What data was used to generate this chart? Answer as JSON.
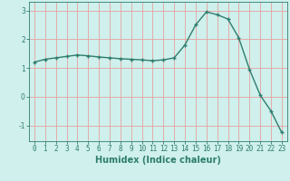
{
  "x": [
    0,
    1,
    2,
    3,
    4,
    5,
    6,
    7,
    8,
    9,
    10,
    11,
    12,
    13,
    14,
    15,
    16,
    17,
    18,
    19,
    20,
    21,
    22,
    23
  ],
  "y": [
    1.2,
    1.3,
    1.35,
    1.4,
    1.45,
    1.42,
    1.38,
    1.35,
    1.32,
    1.3,
    1.28,
    1.25,
    1.28,
    1.35,
    1.8,
    2.5,
    2.95,
    2.85,
    2.7,
    2.05,
    0.95,
    0.05,
    -0.5,
    -1.25
  ],
  "line_color": "#2e7d6e",
  "marker": "+",
  "markersize": 3,
  "linewidth": 1.0,
  "markeredgewidth": 1.0,
  "background_color": "#cff0ec",
  "grid_color": "#e8a0a0",
  "xlabel": "Humidex (Indice chaleur)",
  "xlim": [
    -0.5,
    23.5
  ],
  "ylim": [
    -1.55,
    3.3
  ],
  "yticks": [
    -1,
    0,
    1,
    2,
    3
  ],
  "xtick_labels": [
    "0",
    "1",
    "2",
    "3",
    "4",
    "5",
    "6",
    "7",
    "8",
    "9",
    "10",
    "11",
    "12",
    "13",
    "14",
    "15",
    "16",
    "17",
    "18",
    "19",
    "20",
    "21",
    "22",
    "23"
  ],
  "tick_color": "#2e7d6e",
  "label_color": "#2e7d6e",
  "xlabel_fontsize": 7,
  "tick_fontsize": 5.5
}
